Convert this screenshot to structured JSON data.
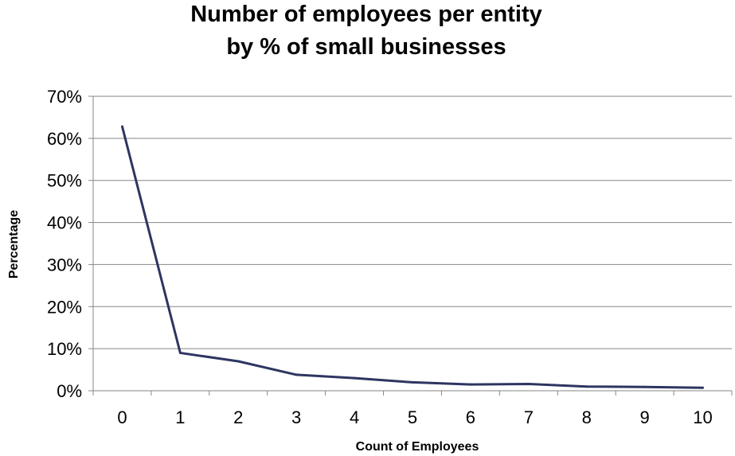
{
  "chart_data": {
    "type": "line",
    "title_lines": [
      "Number of employees per entity",
      "by % of small businesses"
    ],
    "xlabel": "Count of Employees",
    "ylabel": "Percentage",
    "x": [
      0,
      1,
      2,
      3,
      4,
      5,
      6,
      7,
      8,
      9,
      10
    ],
    "y_ticks": [
      "0%",
      "10%",
      "20%",
      "30%",
      "40%",
      "50%",
      "60%",
      "70%"
    ],
    "ylim": [
      0,
      70
    ],
    "grid": true,
    "legend": "none",
    "line_color": "#2e3561",
    "series": [
      {
        "values": [
          62.8,
          9.0,
          7.0,
          3.8,
          3.0,
          2.0,
          1.5,
          1.6,
          1.0,
          0.9,
          0.7
        ]
      }
    ]
  }
}
